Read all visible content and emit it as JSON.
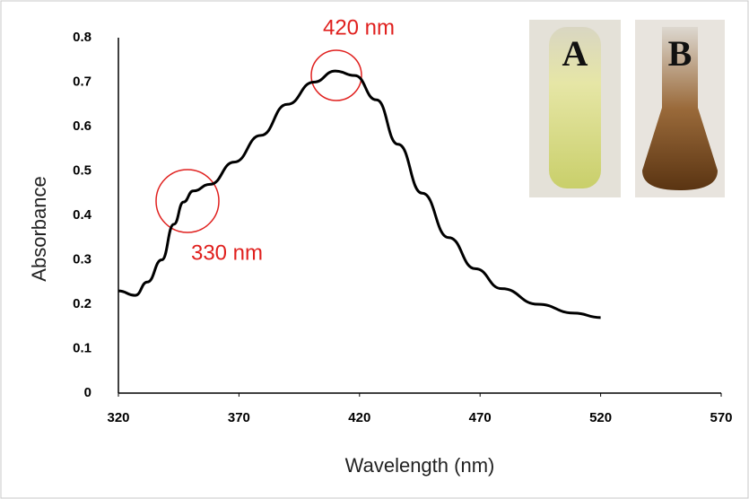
{
  "chart_data": {
    "type": "line",
    "x_label": "Wavelength (nm)",
    "y_label": "Absorbance",
    "x": [
      320,
      327,
      332,
      338,
      343,
      347,
      351,
      358,
      368,
      379,
      390,
      401,
      410,
      418,
      427,
      436,
      446,
      457,
      468,
      479,
      494,
      509,
      520
    ],
    "values": [
      0.23,
      0.22,
      0.25,
      0.3,
      0.38,
      0.43,
      0.455,
      0.47,
      0.52,
      0.58,
      0.65,
      0.7,
      0.725,
      0.715,
      0.66,
      0.56,
      0.45,
      0.35,
      0.28,
      0.235,
      0.2,
      0.18,
      0.17
    ],
    "color": "#000000",
    "xlim": [
      320,
      570
    ],
    "ylim": [
      0,
      0.8
    ],
    "xticks": [
      320,
      370,
      420,
      470,
      520,
      570
    ],
    "yticks": [
      0,
      0.1,
      0.2,
      0.3,
      0.4,
      0.5,
      0.6,
      0.7,
      0.8
    ],
    "grid": false,
    "annotations": [
      "420 nm",
      "330 nm"
    ],
    "photos": [
      "A",
      "B"
    ]
  }
}
